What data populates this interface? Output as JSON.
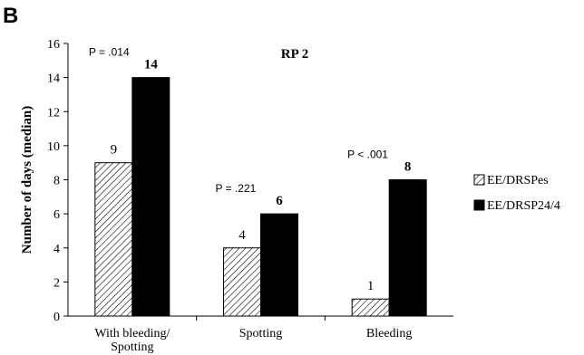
{
  "panel_label": "B",
  "chart_data": {
    "type": "bar",
    "title": "RP 2",
    "xlabel": "",
    "ylabel": "Number of days (median)",
    "ylim": [
      0,
      16
    ],
    "yticks": [
      0,
      2,
      4,
      6,
      8,
      10,
      12,
      14,
      16
    ],
    "categories": [
      "With bleeding/ Spotting",
      "Spotting",
      "Bleeding"
    ],
    "category_lines": [
      [
        "With bleeding/",
        "Spotting"
      ],
      [
        "Spotting"
      ],
      [
        "Bleeding"
      ]
    ],
    "series": [
      {
        "name": "EE/DRSPes",
        "values": [
          9,
          4,
          1
        ],
        "labels": [
          "9",
          "4",
          "1"
        ],
        "fill": "hatched"
      },
      {
        "name": "EE/DRSP24/4",
        "values": [
          14,
          6,
          8
        ],
        "labels": [
          "14",
          "6",
          "8"
        ],
        "fill": "#000000"
      }
    ],
    "p_values": [
      "P = .014",
      "P = .221",
      "P < .001"
    ],
    "grid": false,
    "legend_position": "right"
  }
}
